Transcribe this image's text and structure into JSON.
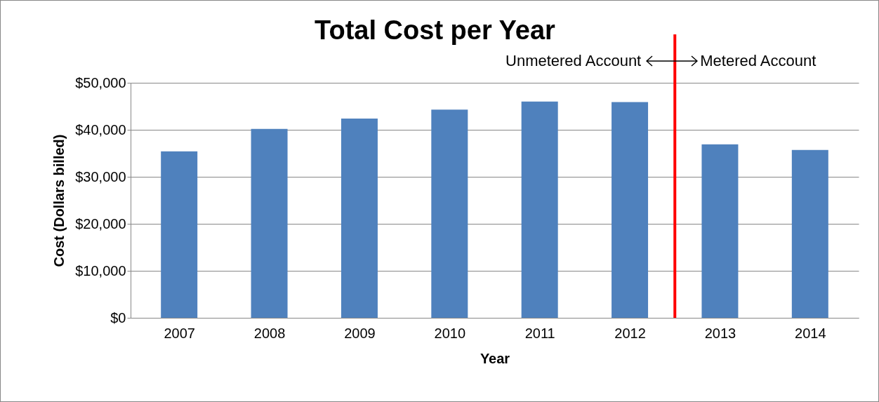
{
  "chart_data": {
    "type": "bar",
    "title": "Total Cost per Year",
    "xlabel": "Year",
    "ylabel": "Cost (Dollars billed)",
    "x": [
      2007,
      2008,
      2009,
      2010,
      2011,
      2012,
      2013,
      2014
    ],
    "values": [
      35400,
      40200,
      42400,
      44300,
      46000,
      45900,
      36900,
      35700
    ],
    "color": "#4f81bd",
    "xlim": [
      2006.5,
      2014.5
    ],
    "xticks": [
      2007,
      2008,
      2009,
      2010,
      2011,
      2012,
      2013,
      2014
    ],
    "ylim": [
      0,
      50000
    ],
    "yticks": [
      {
        "value": 0,
        "label": "$0"
      },
      {
        "value": 10000,
        "label": "$10,000"
      },
      {
        "value": 20000,
        "label": "$20,000"
      },
      {
        "value": 30000,
        "label": "$30,000"
      },
      {
        "value": 40000,
        "label": "$40,000"
      },
      {
        "value": 50000,
        "label": "$50,000"
      }
    ],
    "grid": "y",
    "ref_lines": [
      {
        "axis": "x",
        "value": 2012.5,
        "color": "#ff0000"
      }
    ],
    "annotations": [
      "Unmetered Account",
      "Metered Account"
    ]
  }
}
